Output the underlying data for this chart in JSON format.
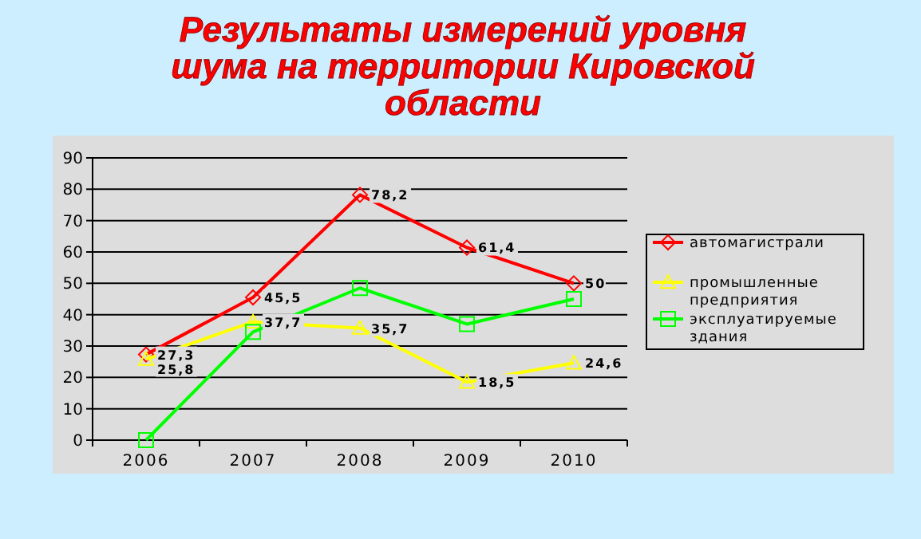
{
  "chart_data": {
    "type": "line",
    "title": "Результаты измерений уровня шума на территории Кировской области",
    "categories": [
      "2006",
      "2007",
      "2008",
      "2009",
      "2010"
    ],
    "series": [
      {
        "name": "автомагистрали",
        "color": "#ff0000",
        "marker": "diamond",
        "values": [
          27.3,
          45.5,
          78.2,
          61.4,
          50
        ],
        "value_labels": [
          "27,3",
          "45,5",
          "78,2",
          "61,4",
          "50"
        ]
      },
      {
        "name": "промышленные предприятия",
        "color": "#ffff00",
        "marker": "triangle",
        "values": [
          25.8,
          37.7,
          35.7,
          18.5,
          24.6
        ],
        "value_labels": [
          "25,8",
          "37,7",
          "35,7",
          "18,5",
          "24,6"
        ]
      },
      {
        "name": "эксплуатируемые здания",
        "color": "#00ff00",
        "marker": "square",
        "values": [
          0,
          34.5,
          48.5,
          37,
          45
        ]
      }
    ],
    "ylim": [
      0,
      90
    ],
    "yticks": [
      0,
      10,
      20,
      30,
      40,
      50,
      60,
      70,
      80,
      90
    ],
    "grid": "y",
    "legend": "right"
  }
}
